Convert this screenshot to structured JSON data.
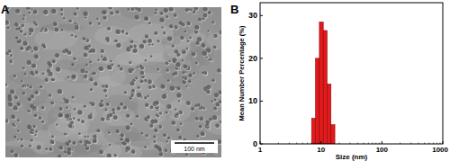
{
  "images": [
    {
      "label": "A",
      "scale_bar": "100 nm"
    }
  ],
  "chart_data": {
    "type": "histogram",
    "panel_label": "B",
    "x_label": "Size (nm)",
    "y_label": "Mean Number Percentage (%)",
    "bins": [
      7.0,
      8.1,
      9.4,
      10.9,
      12.6,
      14.6,
      16.9
    ],
    "values": [
      6,
      20,
      28.5,
      26.5,
      14,
      4.5
    ],
    "color": "#e31a1c",
    "log": "x",
    "xlim": [
      1,
      1000
    ],
    "xticks": [
      1,
      10,
      100,
      1000
    ],
    "ylim": [
      0,
      33
    ],
    "yticks": [
      0,
      10,
      20,
      30
    ],
    "grid": false
  }
}
